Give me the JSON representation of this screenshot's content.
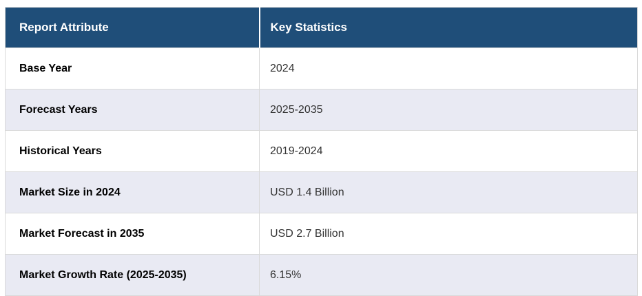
{
  "table": {
    "columns": [
      "Report Attribute",
      "Key Statistics"
    ],
    "rows": [
      {
        "attribute": "Base Year",
        "value": "2024"
      },
      {
        "attribute": "Forecast Years",
        "value": "2025-2035"
      },
      {
        "attribute": "Historical Years",
        "value": "2019-2024"
      },
      {
        "attribute": "Market Size in 2024",
        "value": "USD 1.4 Billion"
      },
      {
        "attribute": "Market Forecast in 2035",
        "value": "USD 2.7 Billion"
      },
      {
        "attribute": "Market Growth Rate (2025-2035)",
        "value": "6.15%"
      }
    ],
    "colors": {
      "header_bg": "#1f4e79",
      "header_text": "#ffffff",
      "row_bg": "#ffffff",
      "row_alt_bg": "#e9eaf3",
      "border": "#d9d9d9",
      "attribute_text": "#000000",
      "value_text": "#333333"
    }
  }
}
